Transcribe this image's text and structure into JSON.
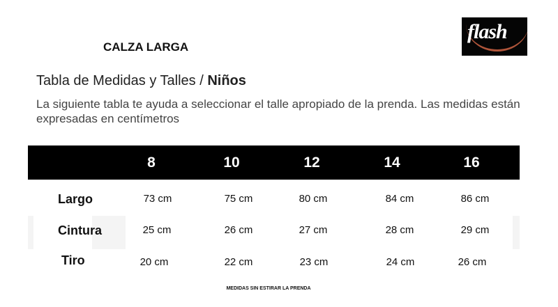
{
  "product": "CALZA LARGA",
  "logo": {
    "text": "flash",
    "bg": "#050505",
    "accent": "#b0553a"
  },
  "title": {
    "main": "Tabla de Medidas y Talles / ",
    "bold": "Niños"
  },
  "description": "La siguiente tabla te ayuda a seleccionar el talle apropiado de la prenda. Las medidas están expresadas en centímetros",
  "table": {
    "sizes": [
      "8",
      "10",
      "12",
      "14",
      "16"
    ],
    "rows": [
      {
        "label": "Largo",
        "values": [
          "73 cm",
          "75 cm",
          "80 cm",
          "84 cm",
          "86 cm"
        ]
      },
      {
        "label": "Cintura",
        "values": [
          "25 cm",
          "26 cm",
          "27 cm",
          "28 cm",
          "29 cm"
        ]
      },
      {
        "label": "Tiro",
        "values": [
          "20 cm",
          "22 cm",
          "23 cm",
          "24 cm",
          "26 cm"
        ]
      }
    ]
  },
  "note": "MEDIDAS SIN ESTIRAR LA PRENDA"
}
